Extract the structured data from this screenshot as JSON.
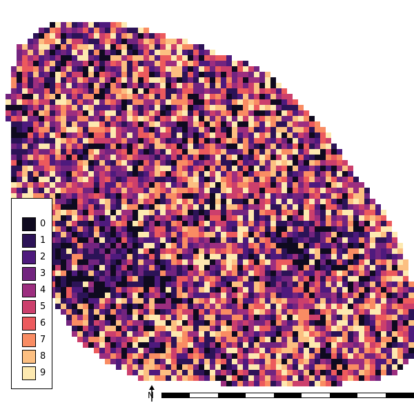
{
  "map": {
    "palette": [
      "#0f0a1f",
      "#2c1357",
      "#4e1a7d",
      "#72247f",
      "#9c2e7f",
      "#cc3f6c",
      "#ec5a5d",
      "#f98c63",
      "#fcbf81",
      "#fde9b0"
    ],
    "grid_cols": 60,
    "grid_rows": 60
  },
  "legend": {
    "items": [
      {
        "label": "0",
        "color": "#0f0a1f"
      },
      {
        "label": "1",
        "color": "#2c1357"
      },
      {
        "label": "2",
        "color": "#4e1a7d"
      },
      {
        "label": "3",
        "color": "#72247f"
      },
      {
        "label": "4",
        "color": "#9c2e7f"
      },
      {
        "label": "5",
        "color": "#cc3f6c"
      },
      {
        "label": "6",
        "color": "#ec5a5d"
      },
      {
        "label": "7",
        "color": "#f98c63"
      },
      {
        "label": "8",
        "color": "#fcbf81"
      },
      {
        "label": "9",
        "color": "#fde9b0"
      }
    ]
  },
  "north_arrow": {
    "letter": "N"
  },
  "scale_bar": {
    "segments": 9
  }
}
